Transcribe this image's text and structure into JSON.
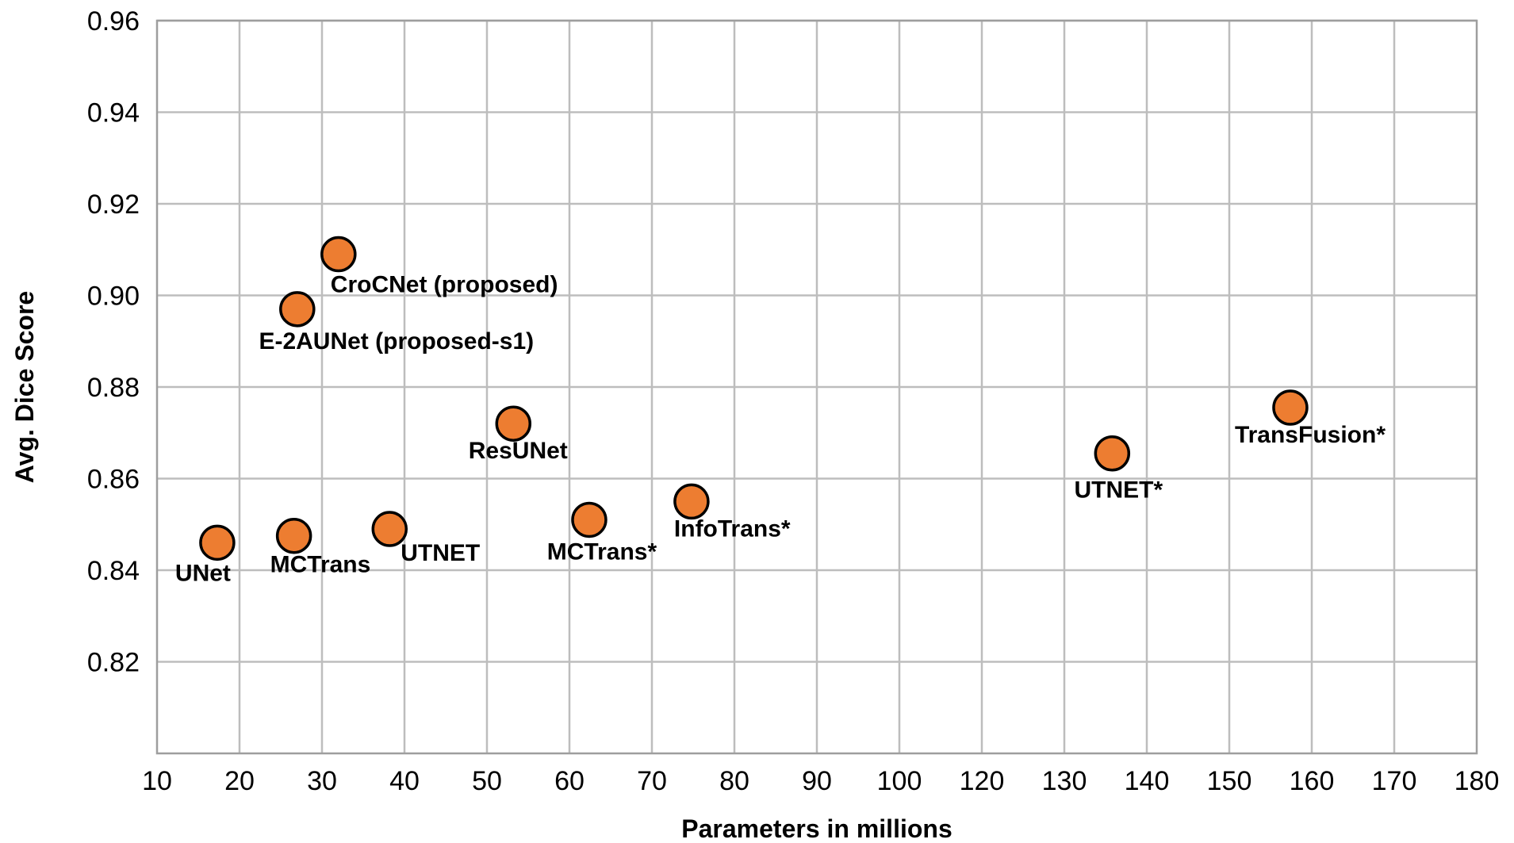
{
  "chart_data": {
    "type": "scatter",
    "title": "",
    "xlabel": "Parameters in millions",
    "ylabel": "Avg. Dice Score",
    "x_ticks": [
      "10",
      "20",
      "30",
      "40",
      "50",
      "60",
      "70",
      "80",
      "90",
      "100",
      "120",
      "130",
      "140",
      "150",
      "160",
      "170",
      "180"
    ],
    "y_ticks": [
      "0.82",
      "0.84",
      "0.86",
      "0.88",
      "0.90",
      "0.92",
      "0.94",
      "0.96"
    ],
    "ylim": [
      0.8,
      0.96
    ],
    "grid": true,
    "marker_color": "#ED7D31",
    "marker_edge": "#000000",
    "points": [
      {
        "label": "UNet",
        "x": 17.3,
        "y": 0.846,
        "label_pos": "below-left"
      },
      {
        "label": "MCTrans",
        "x": 26.6,
        "y": 0.8475,
        "label_pos": "below-right"
      },
      {
        "label": "UTNET",
        "x": 38.2,
        "y": 0.849,
        "label_pos": "below-right"
      },
      {
        "label": "CroCNet (proposed)",
        "x": 32.0,
        "y": 0.909,
        "label_pos": "below-right"
      },
      {
        "label": "E-2AUNet (proposed-s1)",
        "x": 27.0,
        "y": 0.897,
        "label_pos": "below"
      },
      {
        "label": "ResUNet",
        "x": 53.2,
        "y": 0.872,
        "label_pos": "below"
      },
      {
        "label": "MCTrans*",
        "x": 62.4,
        "y": 0.851,
        "label_pos": "below"
      },
      {
        "label": "InfoTrans*",
        "x": 74.8,
        "y": 0.855,
        "label_pos": "below-right"
      },
      {
        "label": "UTNET*",
        "x": 135.8,
        "y": 0.8655,
        "label_pos": "below"
      },
      {
        "label": "TransFusion*",
        "x": 157.4,
        "y": 0.8755,
        "label_pos": "below-right"
      }
    ]
  }
}
